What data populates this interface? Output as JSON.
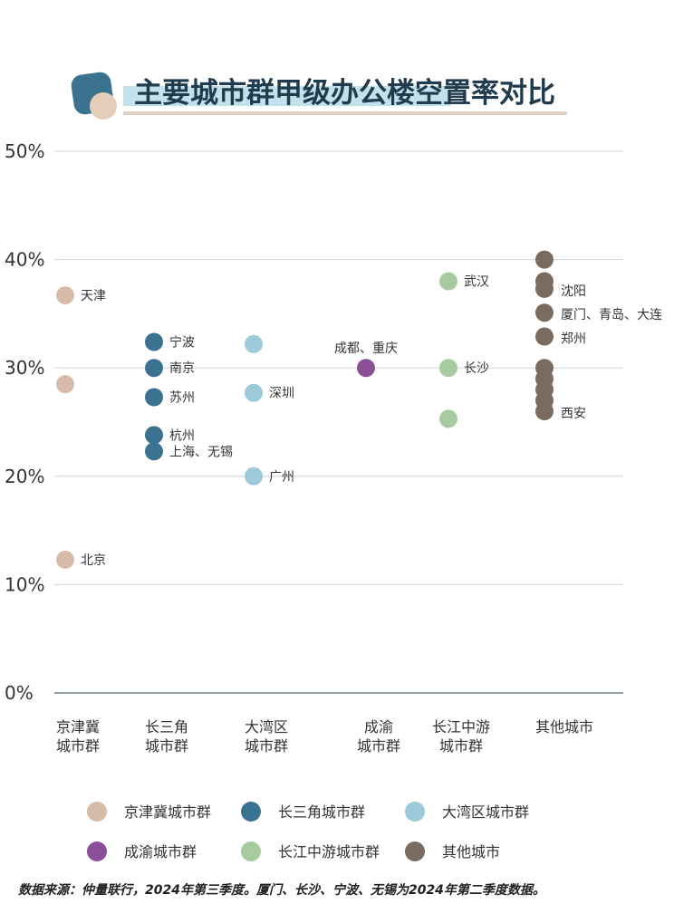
{
  "title": "主要城市群甲级办公楼空置率对比",
  "source": "数据来源：仲量联行，2024年第三季度。厦门、长沙、宁波、无锡为2024年第二季度数据。",
  "chart_data": {
    "type": "scatter",
    "ylim": [
      0,
      50
    ],
    "yticks": [
      {
        "value": 0,
        "label": "0%"
      },
      {
        "value": 10,
        "label": "10%"
      },
      {
        "value": 20,
        "label": "20%"
      },
      {
        "value": 30,
        "label": "30%"
      },
      {
        "value": 40,
        "label": "40%"
      },
      {
        "value": 50,
        "label": "50%"
      }
    ],
    "grid": true,
    "legend_placement": "bottom",
    "categories": [
      {
        "lines": [
          "京津冀",
          "城市群"
        ]
      },
      {
        "lines": [
          "长三角",
          "城市群"
        ]
      },
      {
        "lines": [
          "大湾区",
          "城市群"
        ]
      },
      {
        "lines": [
          "成渝",
          "城市群"
        ]
      },
      {
        "lines": [
          "长江中游",
          "城市群"
        ]
      },
      {
        "lines": [
          "其他城市"
        ]
      }
    ],
    "series": [
      {
        "name": "京津冀城市群",
        "color": "#d6bba8",
        "cat": 0,
        "points": [
          {
            "y": 36.7,
            "label": "天津"
          },
          {
            "y": 28.5,
            "label": ""
          },
          {
            "y": 12.3,
            "label": "北京"
          }
        ]
      },
      {
        "name": "长三角城市群",
        "color": "#3a7290",
        "cat": 1,
        "points": [
          {
            "y": 32.4,
            "label": "宁波"
          },
          {
            "y": 30.0,
            "label": "南京"
          },
          {
            "y": 27.3,
            "label": "苏州"
          },
          {
            "y": 23.8,
            "label": "杭州"
          },
          {
            "y": 22.3,
            "label": "上海、无锡"
          }
        ]
      },
      {
        "name": "大湾区城市群",
        "color": "#9ccad8",
        "cat": 2,
        "points": [
          {
            "y": 32.2,
            "label": ""
          },
          {
            "y": 27.7,
            "label": "深圳"
          },
          {
            "y": 20.0,
            "label": "广州"
          }
        ]
      },
      {
        "name": "成渝城市群",
        "color": "#8a4f96",
        "cat": 3,
        "points": [
          {
            "y": 30.0,
            "label": "成都、重庆"
          }
        ]
      },
      {
        "name": "长江中游城市群",
        "color": "#a7ca9f",
        "cat": 4,
        "points": [
          {
            "y": 38.0,
            "label": "武汉"
          },
          {
            "y": 30.0,
            "label": "长沙"
          },
          {
            "y": 25.3,
            "label": ""
          }
        ]
      },
      {
        "name": "其他城市",
        "color": "#7a6a5f",
        "cat": 5,
        "points": [
          {
            "y": 40.0,
            "label": ""
          },
          {
            "y": 38.0,
            "label": ""
          },
          {
            "y": 37.3,
            "label": "沈阳"
          },
          {
            "y": 35.1,
            "label": "厦门、青岛、大连"
          },
          {
            "y": 32.9,
            "label": "郑州"
          },
          {
            "y": 30.0,
            "label": ""
          },
          {
            "y": 29.0,
            "label": ""
          },
          {
            "y": 28.0,
            "label": ""
          },
          {
            "y": 27.0,
            "label": ""
          },
          {
            "y": 26.0,
            "label": "西安"
          }
        ]
      }
    ]
  }
}
